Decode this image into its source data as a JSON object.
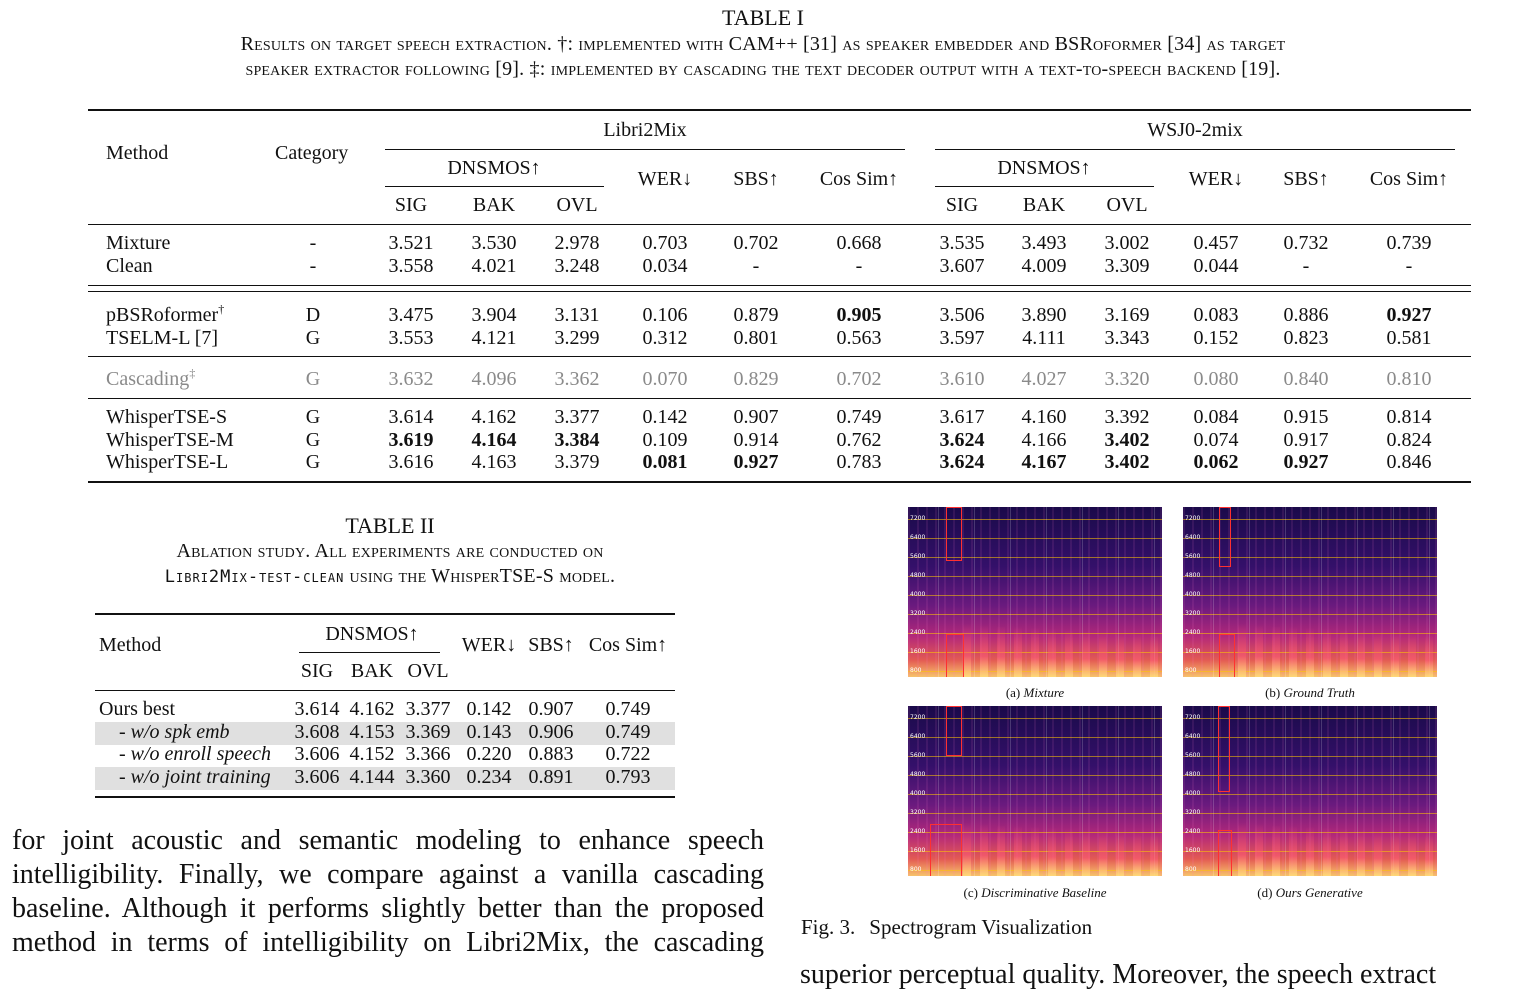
{
  "table1": {
    "label": "TABLE I",
    "caption_line1": "Results on target speech extraction. †: implemented with CAM++ [31] as speaker embedder and BSRoformer [34] as target",
    "caption_line2": "speaker extractor following [9]. ‡: implemented by cascading the text decoder output with a text-to-speech backend [19].",
    "headers": {
      "method": "Method",
      "category": "Category",
      "libri2mix": "Libri2Mix",
      "wsj0": "WSJ0-2mix",
      "dnsmos": "DNSMOS↑",
      "wer": "WER↓",
      "sbs": "SBS↑",
      "cossim": "Cos Sim↑",
      "sig": "SIG",
      "bak": "BAK",
      "ovl": "OVL"
    },
    "rows": [
      {
        "method": "Mixture",
        "sup": "",
        "category": "-",
        "values": [
          "3.521",
          "3.530",
          "2.978",
          "0.703",
          "0.702",
          "0.668",
          "3.535",
          "3.493",
          "3.002",
          "0.457",
          "0.732",
          "0.739"
        ],
        "bold": []
      },
      {
        "method": "Clean",
        "sup": "",
        "category": "-",
        "values": [
          "3.558",
          "4.021",
          "3.248",
          "0.034",
          "-",
          "-",
          "3.607",
          "4.009",
          "3.309",
          "0.044",
          "-",
          "-"
        ],
        "bold": []
      },
      {
        "method": "pBSRoformer",
        "sup": "†",
        "category": "D",
        "values": [
          "3.475",
          "3.904",
          "3.131",
          "0.106",
          "0.879",
          "0.905",
          "3.506",
          "3.890",
          "3.169",
          "0.083",
          "0.886",
          "0.927"
        ],
        "bold": [
          5,
          11
        ]
      },
      {
        "method": "TSELM-L [7]",
        "sup": "",
        "category": "G",
        "values": [
          "3.553",
          "4.121",
          "3.299",
          "0.312",
          "0.801",
          "0.563",
          "3.597",
          "4.111",
          "3.343",
          "0.152",
          "0.823",
          "0.581"
        ],
        "bold": []
      },
      {
        "method": "Cascading",
        "sup": "‡",
        "category": "G",
        "values": [
          "3.632",
          "4.096",
          "3.362",
          "0.070",
          "0.829",
          "0.702",
          "3.610",
          "4.027",
          "3.320",
          "0.080",
          "0.840",
          "0.810"
        ],
        "bold": [],
        "grey": true
      },
      {
        "method": "WhisperTSE-S",
        "sup": "",
        "category": "G",
        "values": [
          "3.614",
          "4.162",
          "3.377",
          "0.142",
          "0.907",
          "0.749",
          "3.617",
          "4.160",
          "3.392",
          "0.084",
          "0.915",
          "0.814"
        ],
        "bold": []
      },
      {
        "method": "WhisperTSE-M",
        "sup": "",
        "category": "G",
        "values": [
          "3.619",
          "4.164",
          "3.384",
          "0.109",
          "0.914",
          "0.762",
          "3.624",
          "4.166",
          "3.402",
          "0.074",
          "0.917",
          "0.824"
        ],
        "bold": [
          0,
          1,
          2,
          6,
          8
        ]
      },
      {
        "method": "WhisperTSE-L",
        "sup": "",
        "category": "G",
        "values": [
          "3.616",
          "4.163",
          "3.379",
          "0.081",
          "0.927",
          "0.783",
          "3.624",
          "4.167",
          "3.402",
          "0.062",
          "0.927",
          "0.846"
        ],
        "bold": [
          3,
          4,
          6,
          7,
          8,
          9,
          10
        ]
      }
    ]
  },
  "table2": {
    "label": "TABLE II",
    "caption_line1": "Ablation study. All experiments are conducted on",
    "caption_line2_mono": "Libri2Mix-test-clean",
    "caption_line2_rest": " using the WhisperTSE-S model.",
    "headers": {
      "method": "Method",
      "dnsmos": "DNSMOS↑",
      "wer": "WER↓",
      "sbs": "SBS↑",
      "cossim": "Cos Sim↑",
      "sig": "SIG",
      "bak": "BAK",
      "ovl": "OVL"
    },
    "rows": [
      {
        "method": "Ours best",
        "italic": false,
        "values": [
          "3.614",
          "4.162",
          "3.377",
          "0.142",
          "0.907",
          "0.749"
        ],
        "shaded": false
      },
      {
        "method": "- w/o spk emb",
        "italic": true,
        "values": [
          "3.608",
          "4.153",
          "3.369",
          "0.143",
          "0.906",
          "0.749"
        ],
        "shaded": true
      },
      {
        "method": "- w/o enroll speech",
        "italic": true,
        "values": [
          "3.606",
          "4.152",
          "3.366",
          "0.220",
          "0.883",
          "0.722"
        ],
        "shaded": false
      },
      {
        "method": "- w/o joint training",
        "italic": true,
        "values": [
          "3.606",
          "4.144",
          "3.360",
          "0.234",
          "0.891",
          "0.793"
        ],
        "shaded": true
      }
    ]
  },
  "figure3": {
    "panels": [
      {
        "label": "(a) ",
        "name": "Mixture"
      },
      {
        "label": "(b) ",
        "name": "Ground Truth"
      },
      {
        "label": "(c) ",
        "name": "Discriminative Baseline"
      },
      {
        "label": "(d) ",
        "name": "Ours Generative"
      }
    ],
    "axis_labels": [
      "7200",
      "6400",
      "5600",
      "4800",
      "4000",
      "3200",
      "2400",
      "1600",
      "800"
    ],
    "caption_prefix": "Fig. 3.",
    "caption_text": "Spectrogram Visualization"
  },
  "body_text": {
    "lines": [
      "for joint acoustic and semantic modeling to enhance speech",
      "intelligibility. Finally, we compare against a vanilla cascading",
      "baseline. Although it performs slightly better than the proposed",
      "method in terms of intelligibility on Libri2Mix, the cascading"
    ],
    "right_partial": "superior perceptual quality. Moreover, the speech extract"
  }
}
